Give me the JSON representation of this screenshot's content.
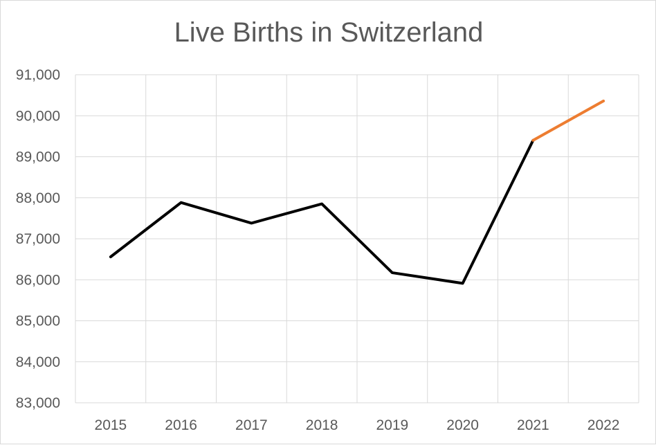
{
  "chart_data": {
    "type": "line",
    "title": "Live Births in Switzerland",
    "xlabel": "",
    "ylabel": "",
    "categories": [
      "2015",
      "2016",
      "2017",
      "2018",
      "2019",
      "2020",
      "2021",
      "2022"
    ],
    "ylim": [
      83000,
      91000
    ],
    "yticks": [
      83000,
      84000,
      85000,
      86000,
      87000,
      88000,
      89000,
      90000,
      91000
    ],
    "ytick_labels": [
      "83,000",
      "84,000",
      "85,000",
      "86,000",
      "87,000",
      "88,000",
      "89,000",
      "90,000",
      "91,000"
    ],
    "grid": true,
    "legend": "none",
    "series": [
      {
        "values": [
          86559,
          87883,
          87381,
          87851,
          86172,
          85914,
          89400,
          null
        ],
        "color": "#000000"
      },
      {
        "values": [
          null,
          null,
          null,
          null,
          null,
          null,
          89400,
          90360
        ],
        "color": "#ed7d31"
      }
    ]
  }
}
